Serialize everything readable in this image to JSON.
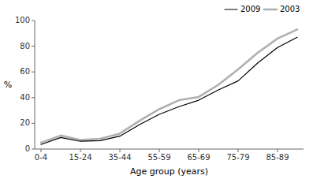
{
  "chart_data": {
    "type": "line",
    "xlabel": "Age group (years)",
    "ylabel": "%",
    "categories": [
      "0-4",
      null,
      "15-24",
      null,
      "35-44",
      null,
      "55-59",
      null,
      "65-69",
      null,
      "75-79",
      null,
      "85-89",
      null
    ],
    "series": [
      {
        "name": "2003",
        "color": "#b0b0b0",
        "values": [
          5.0,
          10.5,
          7.0,
          8.0,
          12.0,
          22.0,
          31.0,
          38.0,
          40.5,
          50.0,
          62.0,
          75.0,
          86.0,
          93.0
        ]
      },
      {
        "name": "2009",
        "color": "#000000",
        "values": [
          3.5,
          9.0,
          6.0,
          6.5,
          10.0,
          19.0,
          27.0,
          33.0,
          38.0,
          46.0,
          53.0,
          67.0,
          79.0,
          87.0
        ]
      }
    ],
    "ylim": [
      0,
      100
    ],
    "yticks": [
      0,
      20,
      40,
      60,
      80,
      100
    ],
    "grid": false,
    "legend": "upper right"
  }
}
